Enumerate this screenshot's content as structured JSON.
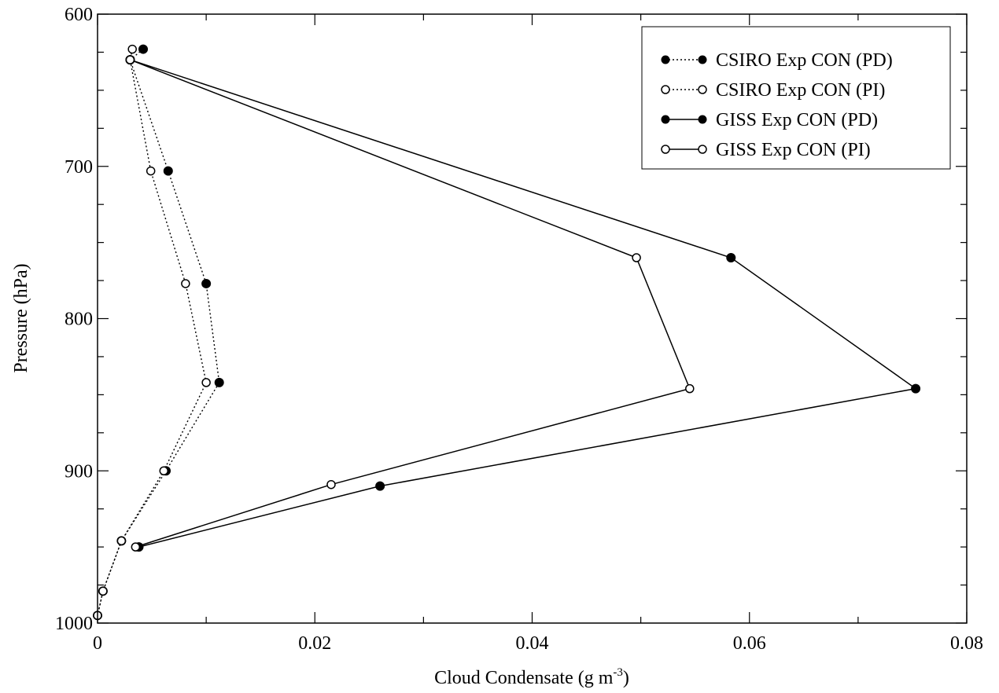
{
  "chart_data": {
    "type": "line",
    "xlabel": "Cloud Condensate (g m",
    "xlabel_sup": "-3",
    "xlabel_close": ")",
    "ylabel": "Pressure (hPa)",
    "xlim": [
      0,
      0.08
    ],
    "ylim": [
      600,
      1000
    ],
    "y_inverted": true,
    "x_ticks": [
      "0",
      "0.02",
      "0.04",
      "0.06",
      "0.08"
    ],
    "y_ticks": [
      "600",
      "700",
      "800",
      "900",
      "1000"
    ],
    "legend_position": "top-right",
    "series": [
      {
        "name": "CSIRO Exp CON (PD)",
        "style": "dotted",
        "marker": "filled",
        "points": [
          [
            0.0042,
            623
          ],
          [
            0.003,
            630
          ],
          [
            0.0065,
            703
          ],
          [
            0.01,
            777
          ],
          [
            0.0112,
            842
          ],
          [
            0.0063,
            900
          ],
          [
            0.0022,
            946
          ],
          [
            0.0005,
            979
          ],
          [
            0.0,
            995
          ]
        ]
      },
      {
        "name": "CSIRO Exp CON (PI)",
        "style": "dotted",
        "marker": "open",
        "points": [
          [
            0.0032,
            623
          ],
          [
            0.003,
            630
          ],
          [
            0.0049,
            703
          ],
          [
            0.0081,
            777
          ],
          [
            0.01,
            842
          ],
          [
            0.0061,
            900
          ],
          [
            0.0022,
            946
          ],
          [
            0.0005,
            979
          ],
          [
            0.0,
            995
          ]
        ]
      },
      {
        "name": "GISS Exp CON (PD)",
        "style": "solid",
        "marker": "filled",
        "points": [
          [
            0.003,
            630
          ],
          [
            0.0583,
            760
          ],
          [
            0.0753,
            846
          ],
          [
            0.026,
            910
          ],
          [
            0.0038,
            950
          ]
        ]
      },
      {
        "name": "GISS Exp CON (PI)",
        "style": "solid",
        "marker": "open",
        "points": [
          [
            0.003,
            630
          ],
          [
            0.0496,
            760
          ],
          [
            0.0545,
            846
          ],
          [
            0.0215,
            909
          ],
          [
            0.0035,
            950
          ]
        ]
      }
    ]
  }
}
